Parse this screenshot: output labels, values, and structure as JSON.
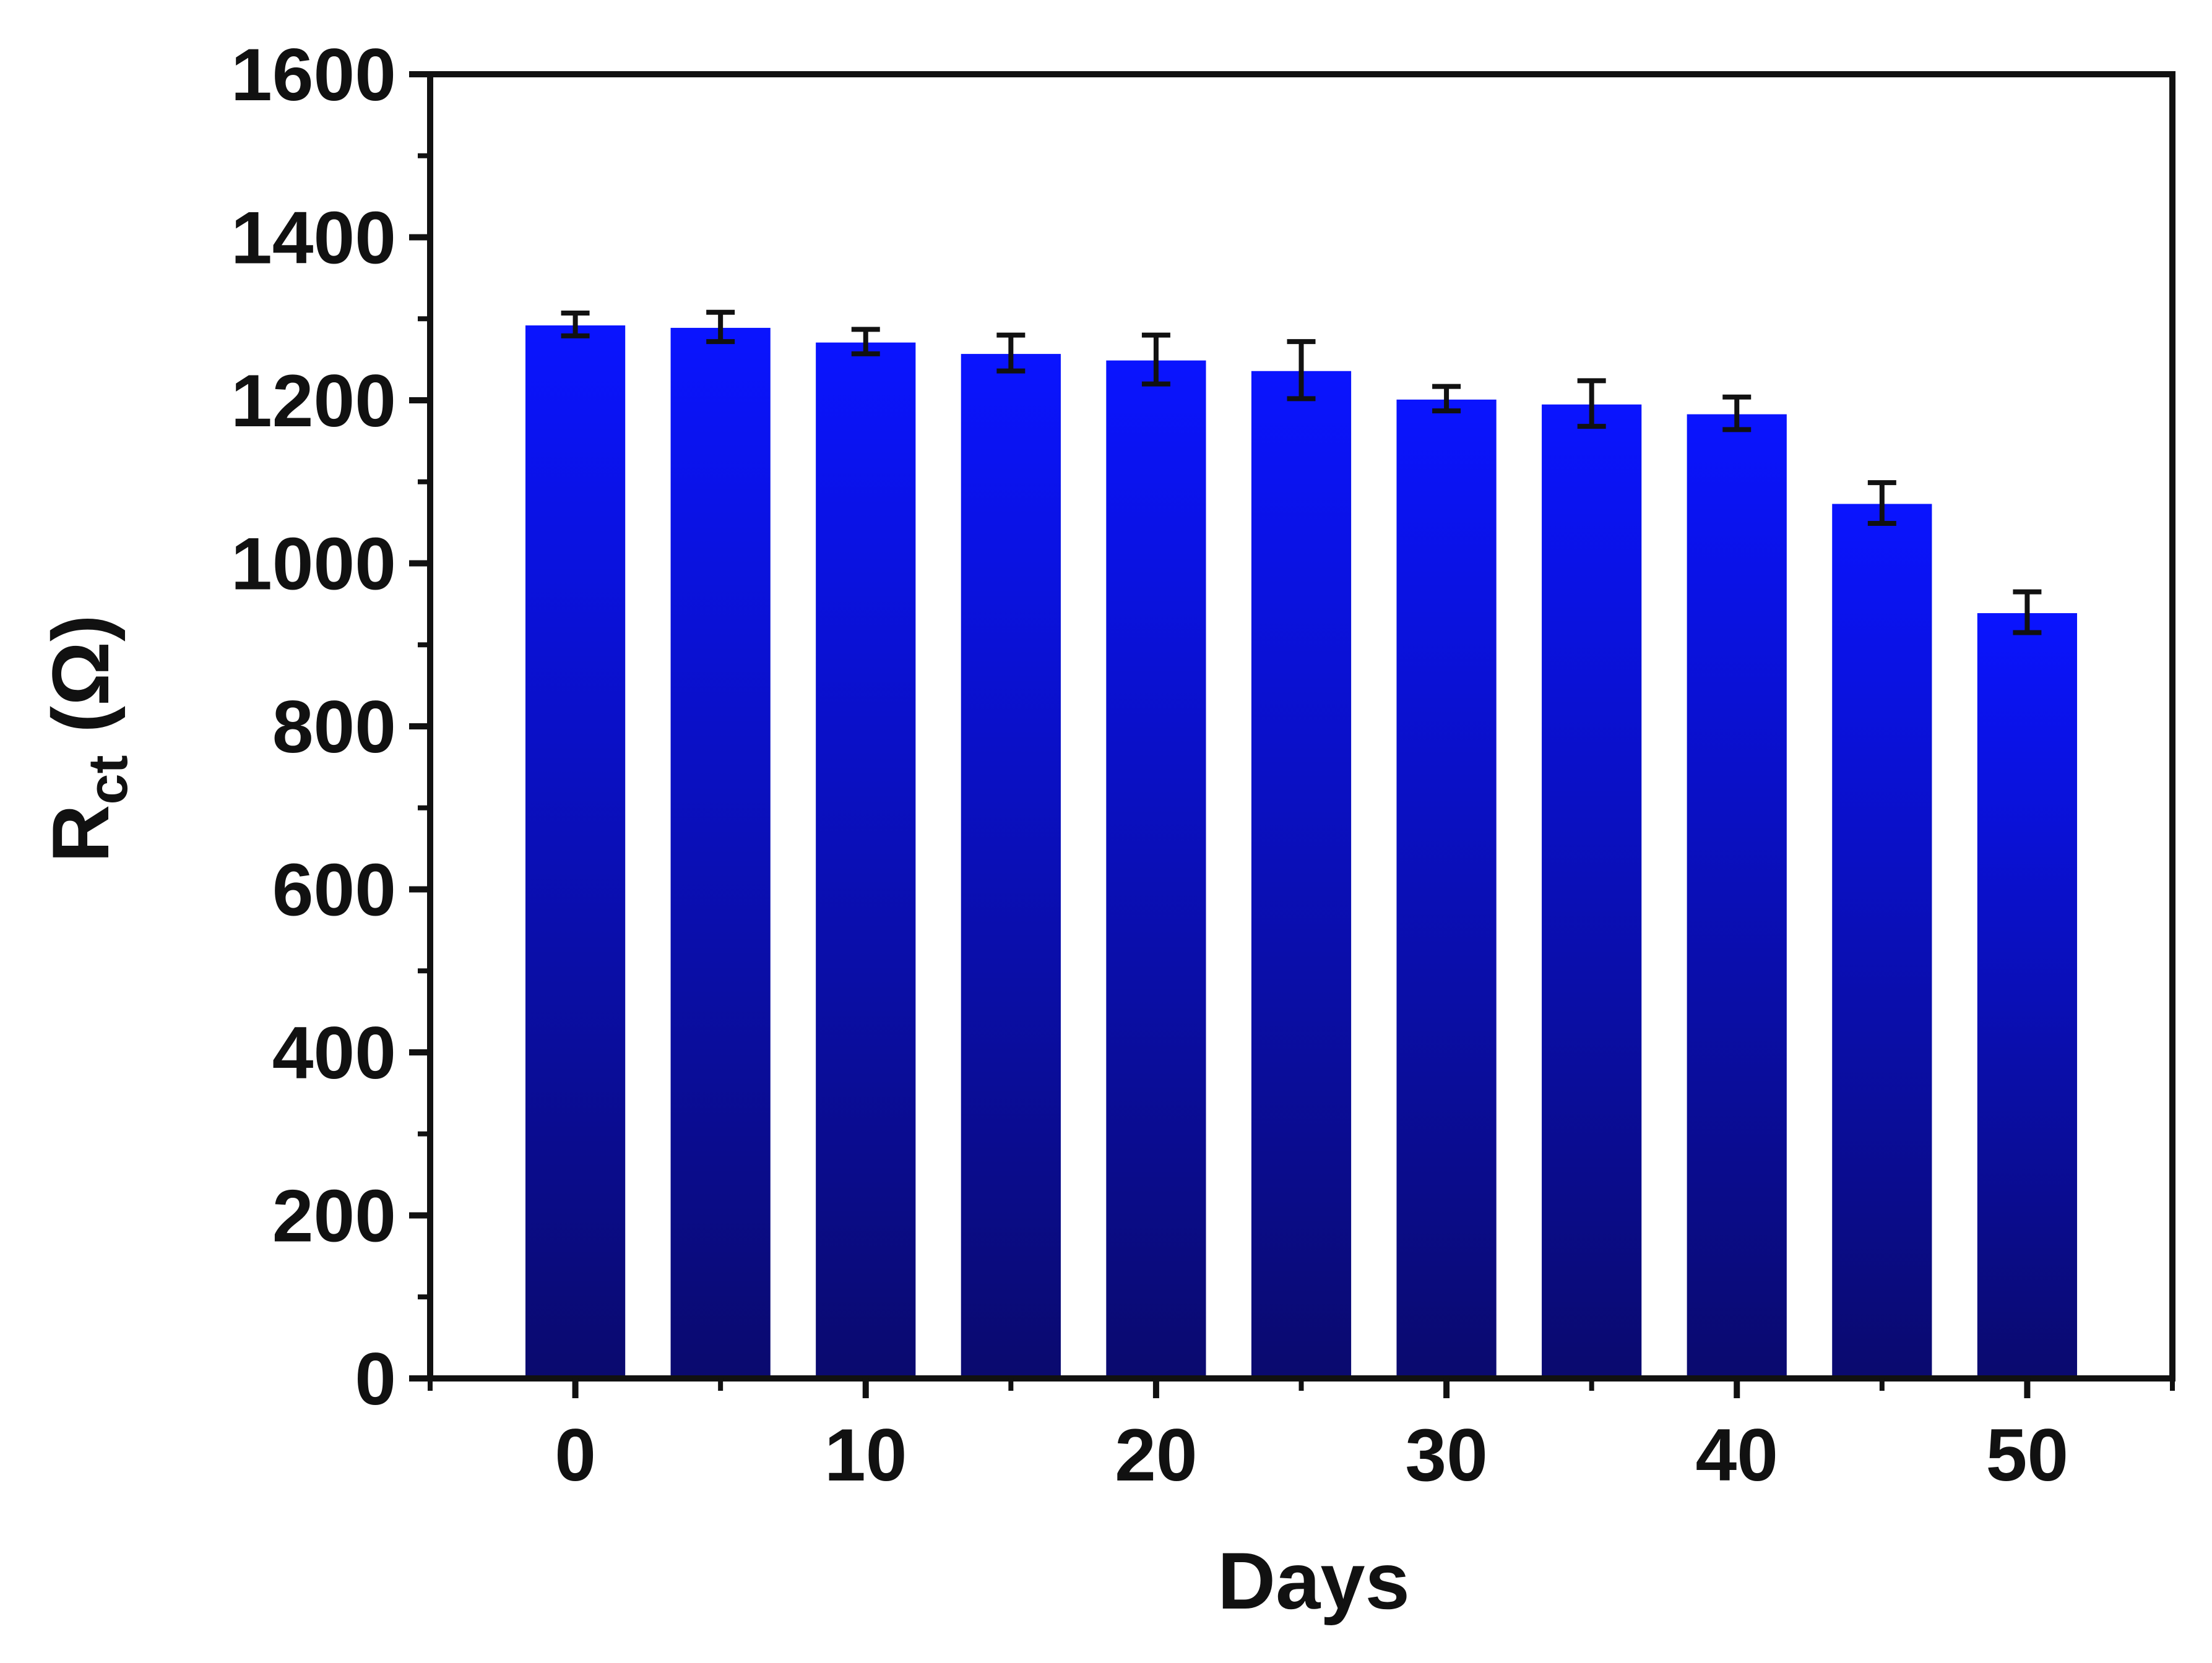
{
  "chart_data": {
    "type": "bar",
    "title": "",
    "xlabel": "Days",
    "ylabel_main": "R",
    "ylabel_sub": "ct",
    "ylabel_unit": " (Ω)",
    "x": [
      0,
      5,
      10,
      15,
      20,
      25,
      30,
      35,
      40,
      45,
      50
    ],
    "values": [
      1293,
      1290,
      1272,
      1258,
      1250,
      1237,
      1202,
      1196,
      1184,
      1074,
      940
    ],
    "errors": [
      14,
      18,
      15,
      22,
      30,
      35,
      15,
      28,
      20,
      25,
      25
    ],
    "xlim": [
      -5,
      55
    ],
    "ylim": [
      0,
      1600
    ],
    "xticks": [
      0,
      10,
      20,
      30,
      40,
      50
    ],
    "yticks": [
      0,
      200,
      400,
      600,
      800,
      1000,
      1200,
      1400,
      1600
    ],
    "bar_width": 3.5,
    "grid": false,
    "legend": "none",
    "colors": {
      "bar_top": "#0a14ff",
      "bar_bottom": "#0a0a6e",
      "axis": "#111111",
      "error_bar": "#111111"
    }
  }
}
